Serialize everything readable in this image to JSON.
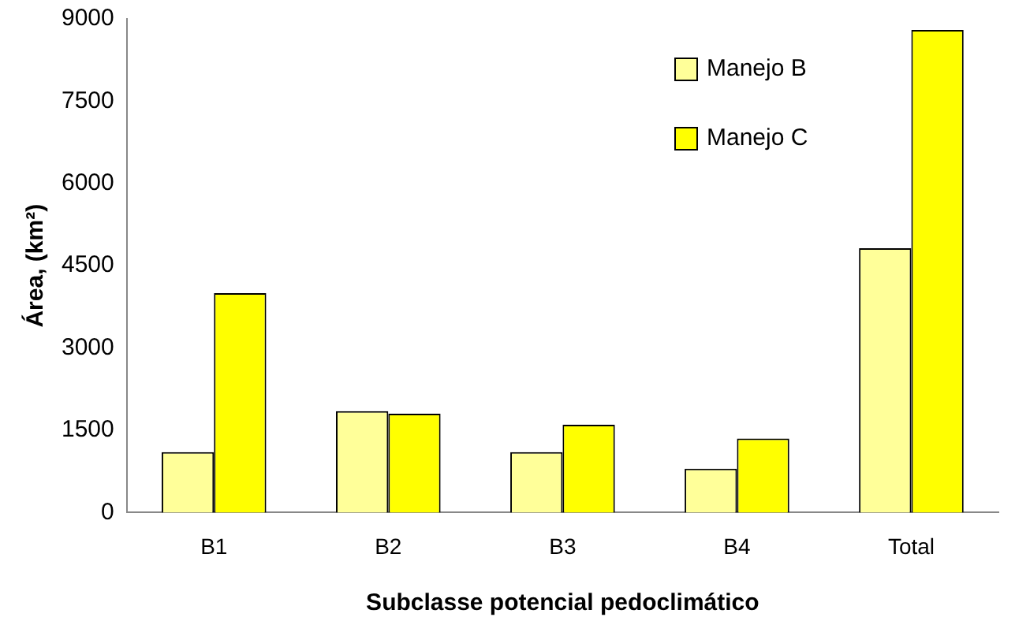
{
  "chart_data": {
    "type": "bar",
    "xlabel": "Subclasse potencial pedoclimático",
    "ylabel": "Área, (km²)",
    "categories": [
      "B1",
      "B2",
      "B3",
      "B4",
      "Total"
    ],
    "series": [
      {
        "name": "Manejo B",
        "color": "#ffff99",
        "values": [
          1100,
          1850,
          1100,
          800,
          4820
        ]
      },
      {
        "name": "Manejo C",
        "color": "#ffff00",
        "values": [
          4000,
          1800,
          1600,
          1350,
          8800
        ]
      }
    ],
    "ylim": [
      0,
      9000
    ],
    "yticks": [
      0,
      1500,
      3000,
      4500,
      6000,
      7500,
      9000
    ],
    "grid": false,
    "legend": "top right"
  }
}
